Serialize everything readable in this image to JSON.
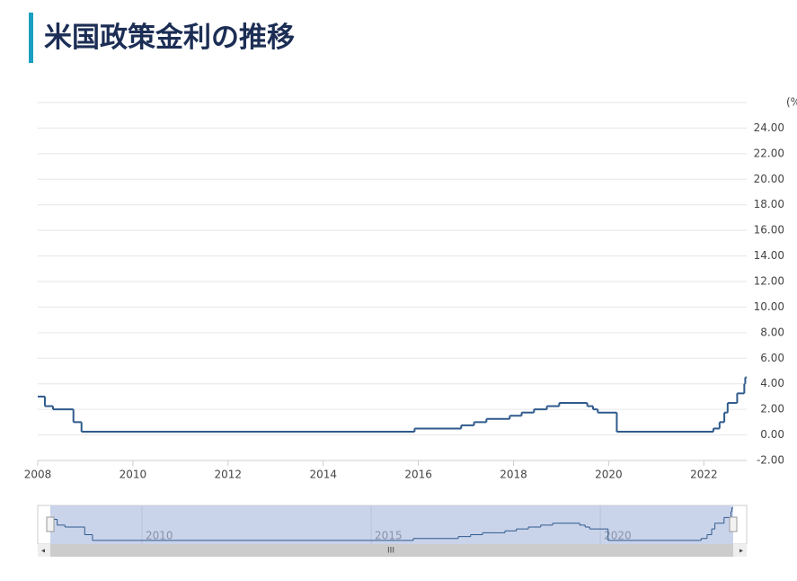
{
  "chart_data": {
    "type": "line",
    "step": true,
    "title": "米国政策金利の推移",
    "unit_label": "(%)",
    "color": "#2f5a8c",
    "x": [
      2008.0,
      2008.15,
      2008.32,
      2008.75,
      2008.92,
      2015.92,
      2016.9,
      2017.17,
      2017.43,
      2017.92,
      2018.17,
      2018.43,
      2018.7,
      2018.96,
      2019.55,
      2019.67,
      2019.77,
      2020.17,
      2022.2,
      2022.33,
      2022.43,
      2022.5,
      2022.7,
      2022.85,
      2022.87
    ],
    "values": [
      3.0,
      2.25,
      2.0,
      1.0,
      0.25,
      0.5,
      0.75,
      1.0,
      1.25,
      1.5,
      1.75,
      2.0,
      2.25,
      2.5,
      2.25,
      2.0,
      1.75,
      0.25,
      0.5,
      1.0,
      1.75,
      2.5,
      3.25,
      4.0,
      4.5
    ],
    "xlim": [
      2008,
      2022.9
    ],
    "xticks": [
      2008,
      2010,
      2012,
      2014,
      2016,
      2018,
      2020,
      2022
    ],
    "ylim": [
      -2,
      26
    ],
    "yticks": [
      {
        "value": -2,
        "label": "-2.00"
      },
      {
        "value": 0,
        "label": "0.00"
      },
      {
        "value": 2,
        "label": "2.00"
      },
      {
        "value": 4,
        "label": "4.00"
      },
      {
        "value": 6,
        "label": "6.00"
      },
      {
        "value": 8,
        "label": "8.00"
      },
      {
        "value": 10,
        "label": "10.00"
      },
      {
        "value": 12,
        "label": "12.00"
      },
      {
        "value": 14,
        "label": "14.00"
      },
      {
        "value": 16,
        "label": "16.00"
      },
      {
        "value": 18,
        "label": "18.00"
      },
      {
        "value": 20,
        "label": "20.00"
      },
      {
        "value": 22,
        "label": "22.00"
      },
      {
        "value": 24,
        "label": "24.00"
      }
    ],
    "grid": true,
    "navigator_ticks": [
      2010,
      2015,
      2020
    ]
  }
}
